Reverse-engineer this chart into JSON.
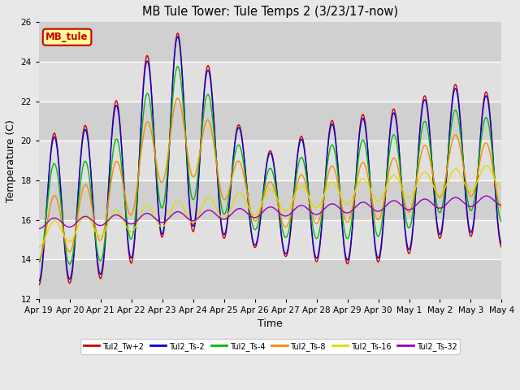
{
  "title": "MB Tule Tower: Tule Temps 2 (3/23/17-now)",
  "xlabel": "Time",
  "ylabel": "Temperature (C)",
  "ylim": [
    12,
    26
  ],
  "yticks": [
    12,
    14,
    16,
    18,
    20,
    22,
    24,
    26
  ],
  "x_labels": [
    "Apr 19",
    "Apr 20",
    "Apr 21",
    "Apr 22",
    "Apr 23",
    "Apr 24",
    "Apr 25",
    "Apr 26",
    "Apr 27",
    "Apr 28",
    "Apr 29",
    "Apr 30",
    "May 1",
    "May 2",
    "May 3",
    "May 4"
  ],
  "series_colors": [
    "#cc0000",
    "#0000dd",
    "#00bb00",
    "#ff8800",
    "#dddd00",
    "#9900bb"
  ],
  "series_names": [
    "Tul2_Tw+2",
    "Tul2_Ts-2",
    "Tul2_Ts-4",
    "Tul2_Ts-8",
    "Tul2_Ts-16",
    "Tul2_Ts-32"
  ],
  "background_color": "#e8e8e8",
  "plot_bg": "#e8e8e8",
  "band_colors": [
    "#d0d0d0",
    "#e8e8e8"
  ],
  "annotation_text": "MB_tule",
  "annotation_bg": "#ffff99",
  "annotation_border": "#cc0000"
}
